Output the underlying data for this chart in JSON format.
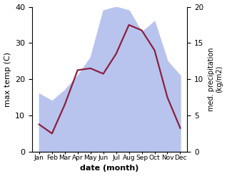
{
  "months": [
    "Jan",
    "Feb",
    "Mar",
    "Apr",
    "May",
    "Jun",
    "Jul",
    "Aug",
    "Sep",
    "Oct",
    "Nov",
    "Dec"
  ],
  "max_temp": [
    7.5,
    5.0,
    13.0,
    22.5,
    23.0,
    21.5,
    27.0,
    35.0,
    33.5,
    28.0,
    15.0,
    6.5
  ],
  "precipitation": [
    8.0,
    7.0,
    8.5,
    10.5,
    13.0,
    19.5,
    20.0,
    19.5,
    16.5,
    18.0,
    12.5,
    10.5
  ],
  "temp_color": "#8b2040",
  "precip_fill_color": "#b8c4ee",
  "ylabel_left": "max temp (C)",
  "ylabel_right": "med. precipitation\n(kg/m2)",
  "xlabel": "date (month)",
  "ylim_left": [
    0,
    40
  ],
  "ylim_right": [
    0,
    20
  ],
  "yticks_left": [
    0,
    10,
    20,
    30,
    40
  ],
  "yticks_right": [
    0,
    5,
    10,
    15,
    20
  ],
  "background_color": "#ffffff"
}
